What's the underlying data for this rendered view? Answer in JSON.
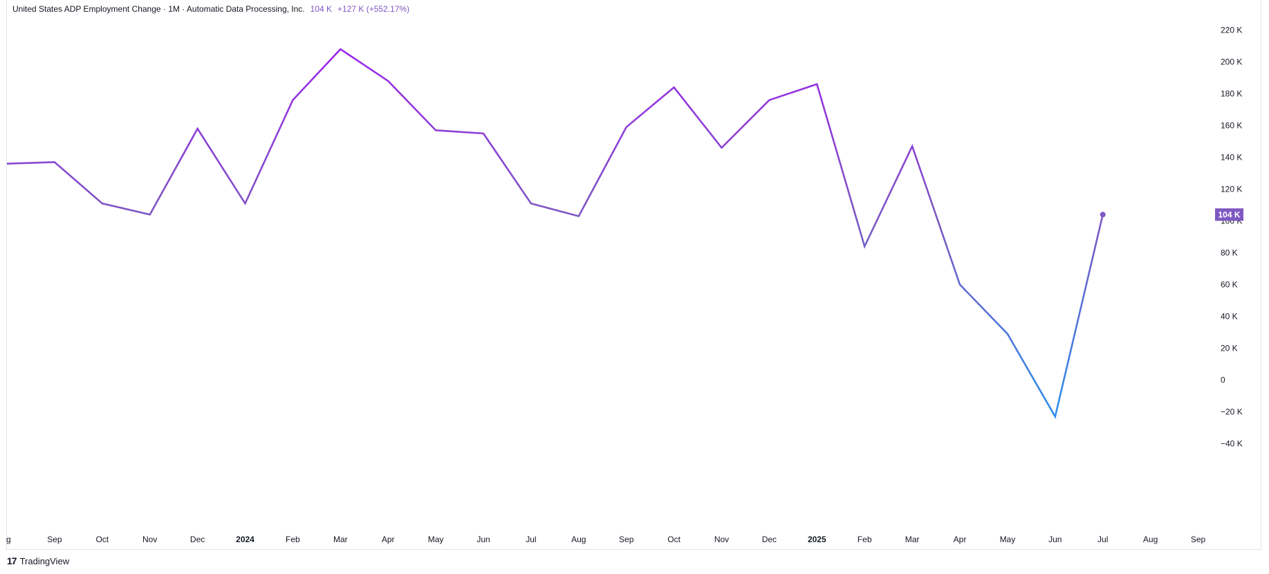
{
  "legend": {
    "title": "United States ADP Employment Change · 1M · Automatic Data Processing, Inc.",
    "last_value": "104 K",
    "change": "+127 K (+552.17%)"
  },
  "last_badge": "104 K",
  "footer": {
    "logo_icon": "tradingview-logo-icon",
    "brand": "TradingView"
  },
  "colors": {
    "line_purple": "#a020f0",
    "line_violet": "#7e57c2",
    "line_blue": "#2196f3",
    "badge": "#7e57c2"
  },
  "chart_data": {
    "type": "line",
    "title": "United States ADP Employment Change · 1M · Automatic Data Processing, Inc.",
    "xlabel": "",
    "ylabel": "",
    "x_labels": [
      "g",
      "Sep",
      "Oct",
      "Nov",
      "Dec",
      "2024",
      "Feb",
      "Mar",
      "Apr",
      "May",
      "Jun",
      "Jul",
      "Aug",
      "Sep",
      "Oct",
      "Nov",
      "Dec",
      "2025",
      "Feb",
      "Mar",
      "Apr",
      "May",
      "Jun",
      "Jul",
      "Aug",
      "Sep"
    ],
    "bold_x_labels": [
      "2024",
      "2025"
    ],
    "y_ticks": [
      -40000,
      -20000,
      0,
      20000,
      40000,
      60000,
      80000,
      100000,
      120000,
      140000,
      160000,
      180000,
      200000,
      220000
    ],
    "y_tick_labels": [
      "−40 K",
      "−20 K",
      "0",
      "20 K",
      "40 K",
      "60 K",
      "80 K",
      "100 K",
      "120 K",
      "140 K",
      "160 K",
      "180 K",
      "200 K",
      "220 K"
    ],
    "ylim": [
      -40000,
      220000
    ],
    "series": [
      {
        "x": [
          "Aug 2023",
          "Sep 2023",
          "Oct 2023",
          "Nov 2023",
          "Dec 2023",
          "Jan 2024",
          "Feb 2024",
          "Mar 2024",
          "Apr 2024",
          "May 2024",
          "Jun 2024",
          "Jul 2024",
          "Aug 2024",
          "Sep 2024",
          "Oct 2024",
          "Nov 2024",
          "Dec 2024",
          "Jan 2025",
          "Feb 2025",
          "Mar 2025",
          "Apr 2025",
          "May 2025",
          "Jun 2025",
          "Jul 2025"
        ],
        "values": [
          136000,
          137000,
          111000,
          104000,
          158000,
          111000,
          176000,
          208000,
          188000,
          157000,
          155000,
          111000,
          103000,
          159000,
          184000,
          146000,
          176000,
          186000,
          84000,
          147000,
          60000,
          29000,
          -23000,
          104000
        ]
      }
    ],
    "grid": false,
    "legend_position": "top-left"
  }
}
